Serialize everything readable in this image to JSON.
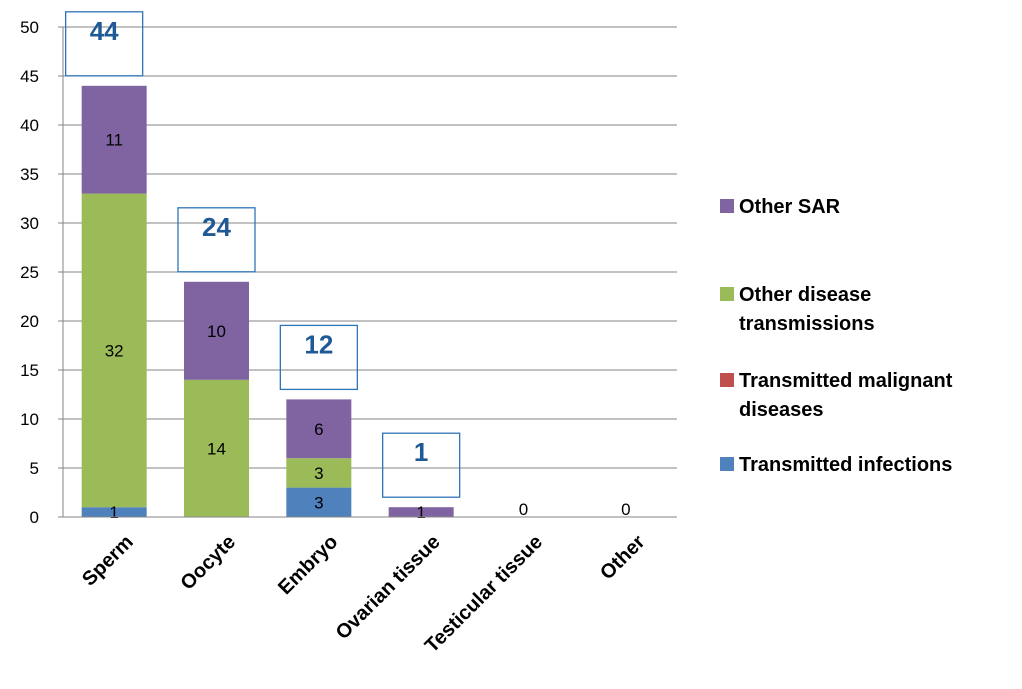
{
  "chart_data": {
    "type": "bar",
    "stacked": true,
    "categories": [
      "Sperm",
      "Oocyte",
      "Embryo",
      "Ovarian tissue",
      "Testicular tissue",
      "Other"
    ],
    "series": [
      {
        "name": "Transmitted infections",
        "values": [
          1,
          0,
          3,
          0,
          0,
          0
        ],
        "labels": [
          "1",
          "",
          "3",
          "",
          "",
          ""
        ],
        "color": "#4F81BD"
      },
      {
        "name": "Transmitted malignant diseases",
        "values": [
          0,
          0,
          0,
          0,
          0,
          0
        ],
        "labels": [
          "",
          "",
          "",
          "",
          "",
          ""
        ],
        "color": "#C0504D"
      },
      {
        "name": "Other disease transmissions",
        "values": [
          32,
          14,
          3,
          0,
          0,
          0
        ],
        "labels": [
          "32",
          "14",
          "3",
          "",
          "",
          ""
        ],
        "color": "#9BBB59"
      },
      {
        "name": "Other SAR",
        "values": [
          11,
          10,
          6,
          1,
          0,
          0
        ],
        "labels": [
          "11",
          "10",
          "6",
          "1",
          "",
          ""
        ],
        "color": "#8064A2"
      }
    ],
    "totals": [
      "44",
      "24",
      "12",
      "1",
      "0",
      "0"
    ],
    "total_style": [
      "boxed",
      "boxed",
      "boxed",
      "boxed",
      "plain",
      "plain"
    ],
    "legend": {
      "placement": "right",
      "entries": [
        {
          "series": 3,
          "lines": [
            "Other SAR"
          ]
        },
        {
          "series": 2,
          "lines": [
            "Other disease",
            "transmissions"
          ]
        },
        {
          "series": 1,
          "lines": [
            "Transmitted malignant",
            "diseases"
          ]
        },
        {
          "series": 0,
          "lines": [
            "Transmitted infections"
          ]
        }
      ]
    },
    "ylim": [
      0,
      50
    ],
    "yticks": [
      0,
      5,
      10,
      15,
      20,
      25,
      30,
      35,
      40,
      45,
      50
    ],
    "grid": true,
    "title": "",
    "xlabel": "",
    "ylabel": ""
  }
}
